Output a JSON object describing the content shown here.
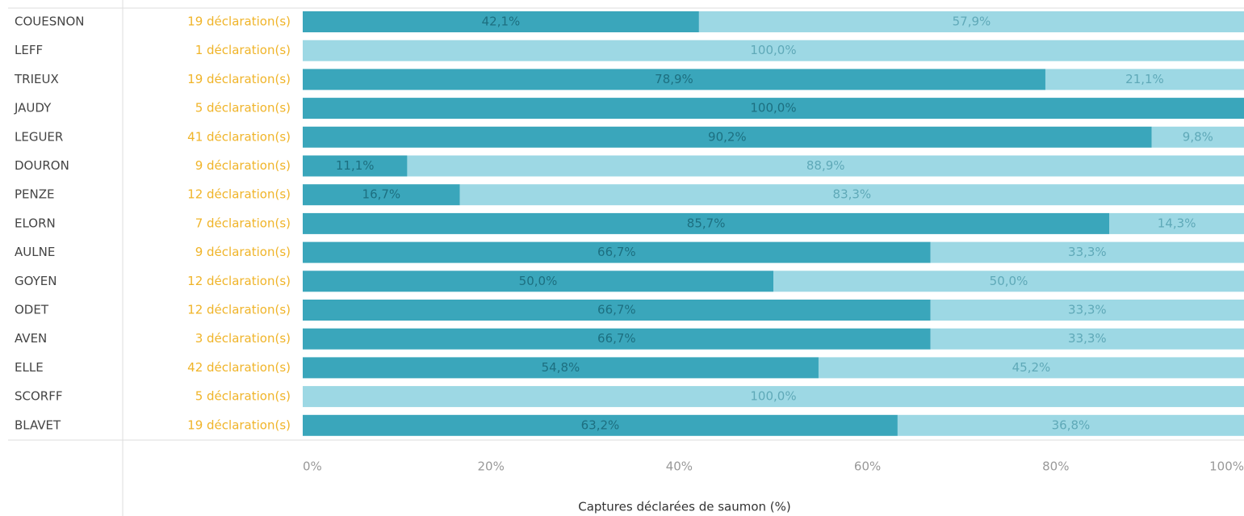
{
  "chart_data": {
    "type": "stacked_barh",
    "categories": [
      "COUESNON",
      "LEFF",
      "TRIEUX",
      "JAUDY",
      "LEGUER",
      "DOURON",
      "PENZE",
      "ELORN",
      "AULNE",
      "GOYEN",
      "ODET",
      "AVEN",
      "ELLE",
      "SCORFF",
      "BLAVET"
    ],
    "row_labels": [
      "19 déclaration(s)",
      "1 déclaration(s)",
      "19 déclaration(s)",
      "5 déclaration(s)",
      "41 déclaration(s)",
      "9 déclaration(s)",
      "12 déclaration(s)",
      "7 déclaration(s)",
      "9 déclaration(s)",
      "12 déclaration(s)",
      "12 déclaration(s)",
      "3 déclaration(s)",
      "42 déclaration(s)",
      "5 déclaration(s)",
      "19 déclaration(s)"
    ],
    "series": [
      {
        "color": "#3aa6bb",
        "values": [
          42.1,
          null,
          78.9,
          100.0,
          90.2,
          11.1,
          16.7,
          85.7,
          66.7,
          50.0,
          66.7,
          66.7,
          54.8,
          null,
          63.2
        ],
        "value_labels": [
          "42,1%",
          null,
          "78,9%",
          "100,0%",
          "90,2%",
          "11,1%",
          "16,7%",
          "85,7%",
          "66,7%",
          "50,0%",
          "66,7%",
          "66,7%",
          "54,8%",
          null,
          "63,2%"
        ]
      },
      {
        "color": "#9dd8e4",
        "values": [
          57.9,
          100.0,
          21.1,
          null,
          9.8,
          88.9,
          83.3,
          14.3,
          33.3,
          50.0,
          33.3,
          33.3,
          45.2,
          100.0,
          36.8
        ],
        "value_labels": [
          "57,9%",
          "100,0%",
          "21,1%",
          null,
          "9,8%",
          "88,9%",
          "83,3%",
          "14,3%",
          "33,3%",
          "50,0%",
          "33,3%",
          "33,3%",
          "45,2%",
          "100,0%",
          "36,8%"
        ]
      }
    ],
    "xlim": [
      0,
      100
    ],
    "xticks": [
      {
        "value": 0,
        "label": "0%"
      },
      {
        "value": 20,
        "label": "20%"
      },
      {
        "value": 40,
        "label": "40%"
      },
      {
        "value": 60,
        "label": "60%"
      },
      {
        "value": 80,
        "label": "80%"
      },
      {
        "value": 100,
        "label": "100%"
      }
    ],
    "xlabel": "Captures déclarées de saumon (%)"
  }
}
